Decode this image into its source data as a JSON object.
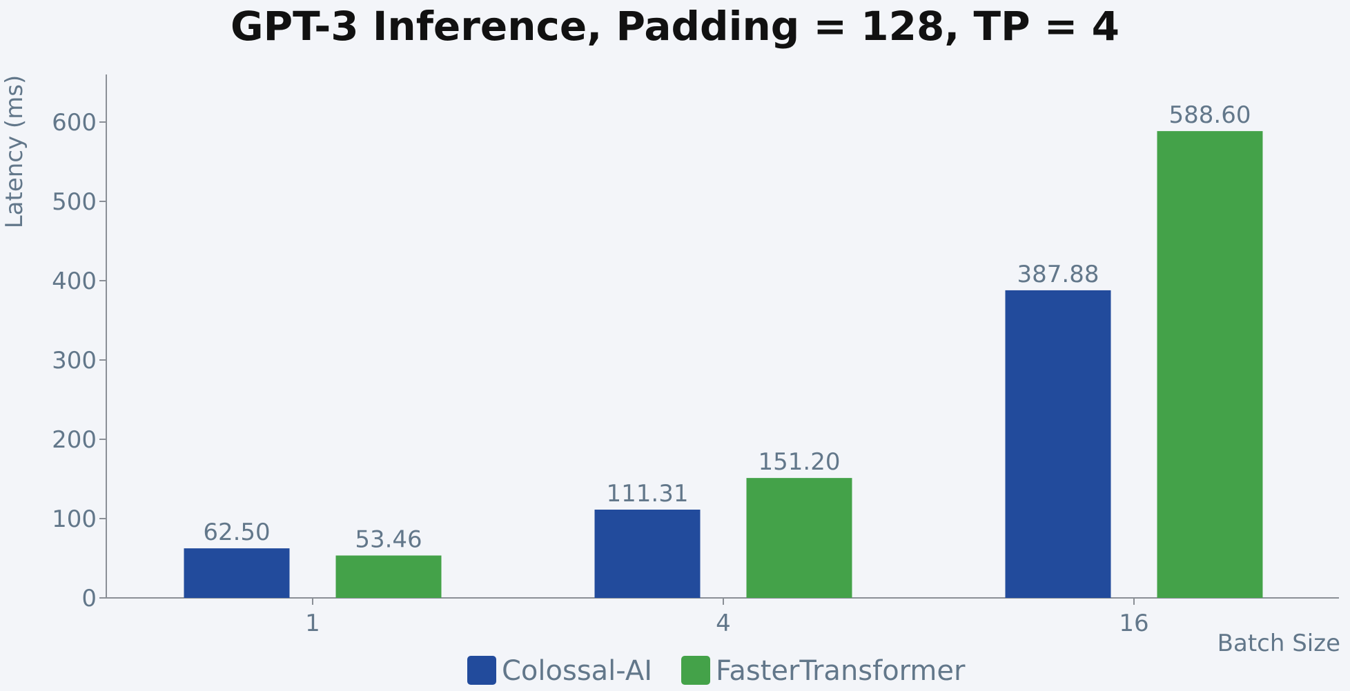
{
  "chart_data": {
    "type": "bar",
    "title": "GPT-3 Inference, Padding = 128, TP = 4",
    "xlabel": "Batch Size",
    "ylabel": "Latency (ms)",
    "categories": [
      "1",
      "4",
      "16"
    ],
    "yticks": [
      0,
      100,
      200,
      300,
      400,
      500,
      600
    ],
    "ylim": [
      0,
      660
    ],
    "grid": false,
    "legend_position": "bottom-center",
    "series": [
      {
        "name": "Colossal-AI",
        "color": "#224b9c",
        "values": [
          62.5,
          111.31,
          387.88
        ],
        "labels": [
          "62.50",
          "111.31",
          "387.88"
        ]
      },
      {
        "name": "FasterTransformer",
        "color": "#44a249",
        "values": [
          53.46,
          151.2,
          588.6
        ],
        "labels": [
          "53.46",
          "151.20",
          "588.60"
        ]
      }
    ]
  }
}
